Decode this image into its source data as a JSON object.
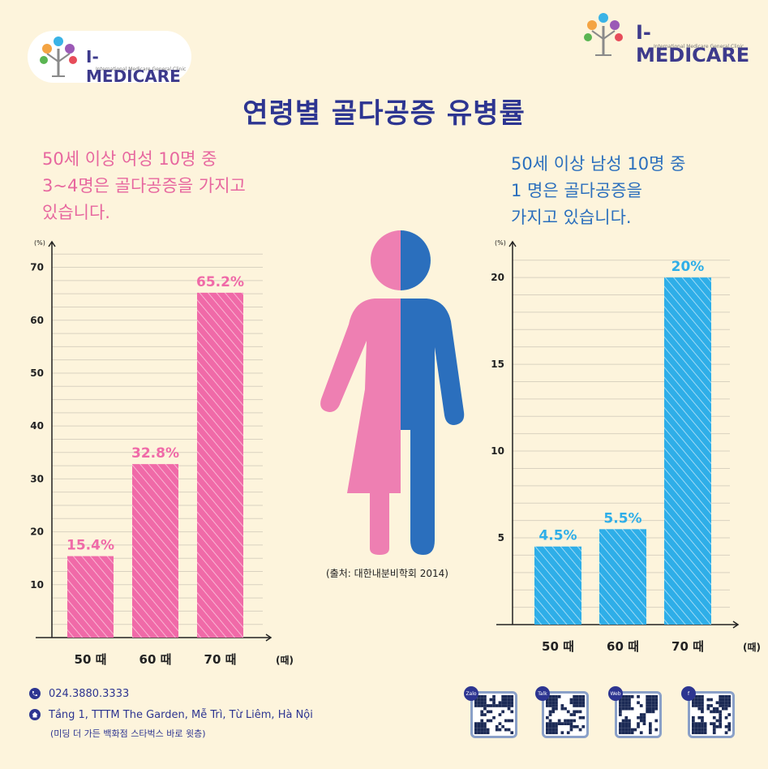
{
  "brand": {
    "name": "I-MEDICARE",
    "tagline": "International Medicare General Clinic"
  },
  "title": "연령별 골다공증 유병률",
  "female_subtitle": "50세 이상 여성 10명 중\n3~4명은 골다공증을 가지고\n있습니다.",
  "male_subtitle": "50세 이상 남성 10명 중\n1 명은 골다공증을\n가지고 있습니다.",
  "source": "(출처: 대한내분비학회 2014)",
  "footer": {
    "phone": "024.3880.3333",
    "address": "Tầng 1, TTTM The Garden, Mễ Trì, Từ Liêm, Hà Nội",
    "address_note": "(미딩 더 가든 백화점 스타벅스 바로 윗층)",
    "qr_labels": [
      "Zalo",
      "Talk",
      "Web",
      "f"
    ]
  },
  "colors": {
    "female": "#f06aa8",
    "male": "#2eaee8",
    "title": "#2d3591",
    "figure_blue": "#2b6fbd",
    "figure_pink": "#ee7fb2"
  },
  "chart_data": [
    {
      "type": "bar",
      "series_name": "female",
      "categories": [
        "50 때",
        "60 때",
        "70 때"
      ],
      "values": [
        15.4,
        32.8,
        65.2
      ],
      "data_labels": [
        "15.4%",
        "32.8%",
        "65.2%"
      ],
      "y_unit": "(%)",
      "x_unit": "(때)",
      "yticks": [
        10,
        20,
        30,
        40,
        50,
        60,
        70
      ],
      "ylim": [
        0,
        73
      ],
      "grid": true
    },
    {
      "type": "bar",
      "series_name": "male",
      "categories": [
        "50 때",
        "60 때",
        "70 때"
      ],
      "values": [
        4.5,
        5.5,
        20
      ],
      "data_labels": [
        "4.5%",
        "5.5%",
        "20%"
      ],
      "y_unit": "(%)",
      "x_unit": "(때)",
      "yticks": [
        5,
        10,
        15,
        20
      ],
      "ylim": [
        0,
        21.5
      ],
      "grid": true
    }
  ]
}
